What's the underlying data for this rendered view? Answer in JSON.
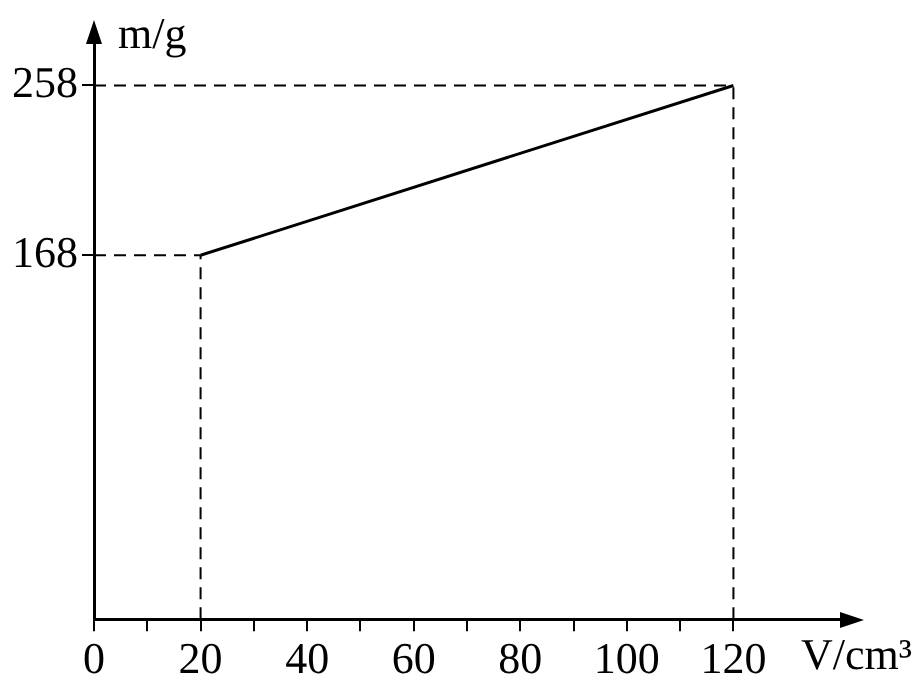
{
  "chart_data": {
    "type": "line",
    "xlabel": "V/cm³",
    "ylabel": "m/g",
    "x": [
      20,
      120
    ],
    "values": [
      168,
      258
    ],
    "color": "#000000",
    "xlim": [
      0,
      140
    ],
    "xticks": [
      0,
      {
        "value": 10,
        "label": null
      },
      20,
      {
        "value": 30,
        "label": null
      },
      40,
      {
        "value": 50,
        "label": null
      },
      60,
      {
        "value": 70,
        "label": null
      },
      80,
      {
        "value": 90,
        "label": null
      },
      100,
      {
        "value": 110,
        "label": null
      },
      120
    ],
    "ylim": [
      -25,
      280
    ],
    "yticks": [
      168,
      258
    ],
    "ref_lines": [
      {
        "axis": "x",
        "value": 20,
        "line_style": "dashed"
      },
      {
        "axis": "x",
        "value": 120,
        "line_style": "dashed"
      },
      {
        "axis": "y",
        "value": 168,
        "line_style": "dashed"
      },
      {
        "axis": "y",
        "value": 258,
        "line_style": "dashed"
      }
    ],
    "marker": "none",
    "line_style": "solid",
    "grid": false,
    "legend": false
  }
}
